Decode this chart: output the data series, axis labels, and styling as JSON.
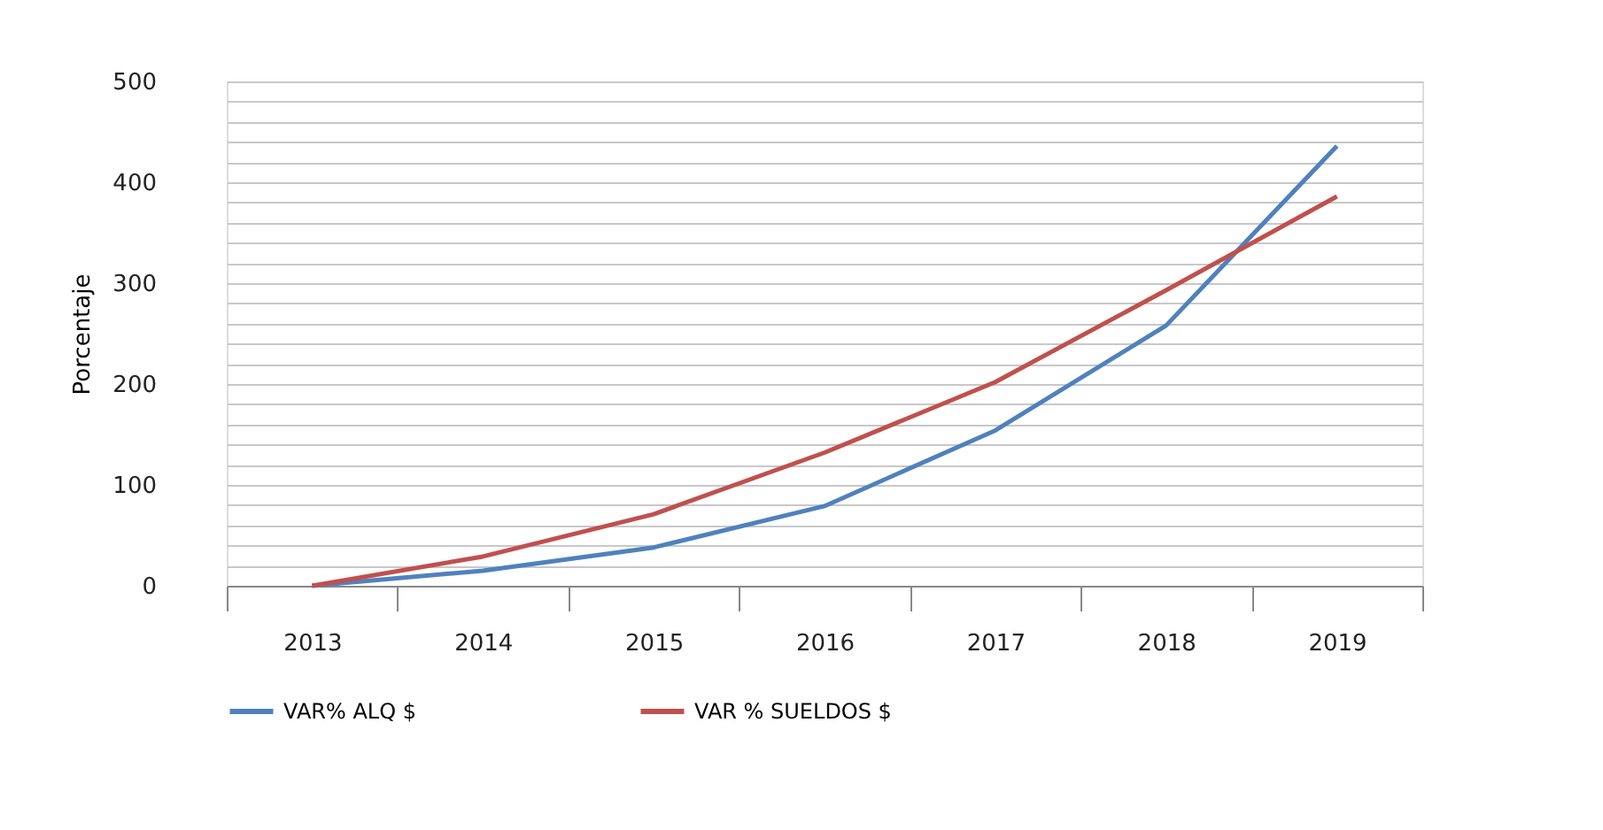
{
  "chart_data": {
    "type": "line",
    "ylabel": "Porcentaje",
    "categories": [
      "2013",
      "2014",
      "2015",
      "2016",
      "2017",
      "2018",
      "2019"
    ],
    "series": [
      {
        "name": "VAR% ALQ $",
        "color": "#4f81bd",
        "values": [
          0,
          15,
          38,
          79,
          154,
          258,
          436
        ]
      },
      {
        "name": "VAR % SUELDOS $",
        "color": "#c0504d",
        "values": [
          0,
          29,
          71,
          132,
          202,
          293,
          386
        ]
      }
    ],
    "ylim": [
      0,
      500
    ],
    "yticks": [
      0,
      {
        "value": 20,
        "label": null
      },
      {
        "value": 40,
        "label": null
      },
      {
        "value": 60,
        "label": null
      },
      {
        "value": 80,
        "label": null
      },
      100,
      {
        "value": 120,
        "label": null
      },
      {
        "value": 140,
        "label": null
      },
      {
        "value": 160,
        "label": null
      },
      {
        "value": 180,
        "label": null
      },
      200,
      {
        "value": 220,
        "label": null
      },
      {
        "value": 240,
        "label": null
      },
      {
        "value": 260,
        "label": null
      },
      {
        "value": 280,
        "label": null
      },
      300,
      {
        "value": 320,
        "label": null
      },
      {
        "value": 340,
        "label": null
      },
      {
        "value": 360,
        "label": null
      },
      {
        "value": 380,
        "label": null
      },
      400,
      {
        "value": 420,
        "label": null
      },
      {
        "value": 440,
        "label": null
      },
      {
        "value": 460,
        "label": null
      },
      {
        "value": 480,
        "label": null
      },
      500
    ],
    "grid": "y",
    "legend": "bottom",
    "marker": "none",
    "line_style": "solid"
  }
}
